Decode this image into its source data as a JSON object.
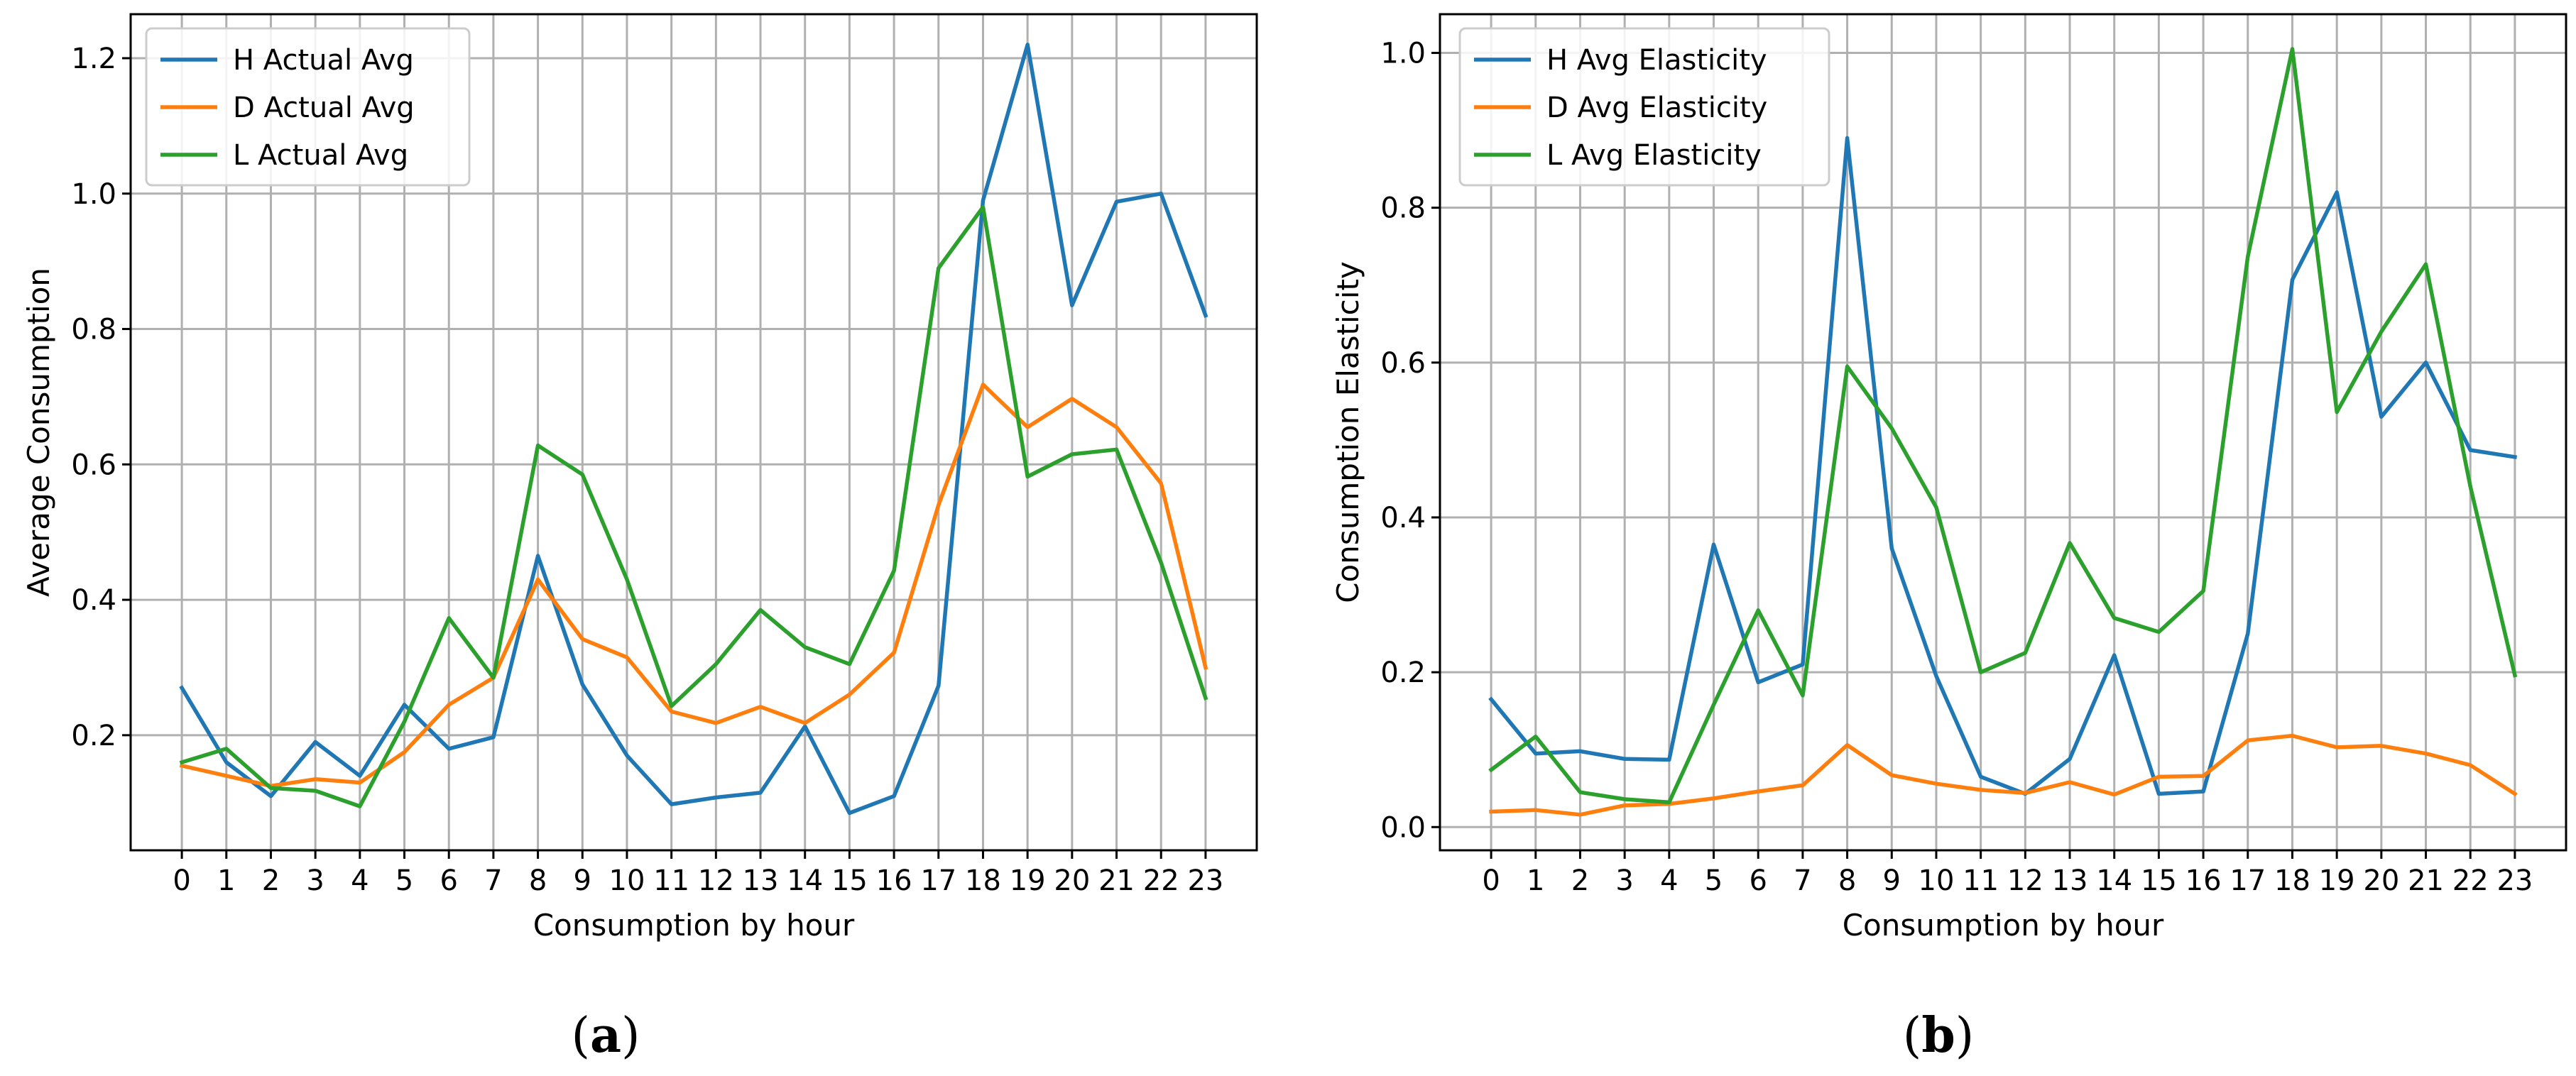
{
  "chart_data": [
    {
      "type": "line",
      "panel": "a",
      "caption": "(a)",
      "caption_open": "(",
      "caption_letter": "a",
      "caption_close": ")",
      "xlabel": "Consumption by hour",
      "ylabel": "Average Consumption",
      "x": [
        0,
        1,
        2,
        3,
        4,
        5,
        6,
        7,
        8,
        9,
        10,
        11,
        12,
        13,
        14,
        15,
        16,
        17,
        18,
        19,
        20,
        21,
        22,
        23
      ],
      "x_ticks": [
        "0",
        "1",
        "2",
        "3",
        "4",
        "5",
        "6",
        "7",
        "8",
        "9",
        "10",
        "11",
        "12",
        "13",
        "14",
        "15",
        "16",
        "17",
        "18",
        "19",
        "20",
        "21",
        "22",
        "23"
      ],
      "xlim": [
        -1.15,
        24.15
      ],
      "ylim": [
        0.03,
        1.265
      ],
      "y_ticks": [
        0.2,
        0.4,
        0.6,
        0.8,
        1.0,
        1.2
      ],
      "y_tick_labels": [
        "0.2",
        "0.4",
        "0.6",
        "0.8",
        "1.0",
        "1.2"
      ],
      "grid": true,
      "legend_position": "upper-left",
      "series": [
        {
          "name": "H Actual Avg",
          "color": "#1f77b4",
          "values": [
            0.27,
            0.16,
            0.11,
            0.19,
            0.14,
            0.245,
            0.18,
            0.197,
            0.465,
            0.275,
            0.17,
            0.098,
            0.108,
            0.115,
            0.213,
            0.085,
            0.11,
            0.273,
            0.99,
            1.22,
            0.835,
            0.988,
            1.0,
            0.82
          ]
        },
        {
          "name": "D Actual Avg",
          "color": "#ff7f0e",
          "values": [
            0.155,
            0.14,
            0.125,
            0.135,
            0.13,
            0.175,
            0.245,
            0.285,
            0.43,
            0.342,
            0.315,
            0.235,
            0.218,
            0.242,
            0.218,
            0.26,
            0.322,
            0.54,
            0.718,
            0.655,
            0.697,
            0.655,
            0.572,
            0.3
          ]
        },
        {
          "name": "L Actual Avg",
          "color": "#2ca02c",
          "values": [
            0.16,
            0.18,
            0.122,
            0.118,
            0.095,
            0.22,
            0.373,
            0.285,
            0.628,
            0.585,
            0.43,
            0.243,
            0.305,
            0.385,
            0.33,
            0.305,
            0.443,
            0.89,
            0.98,
            0.582,
            0.615,
            0.622,
            0.455,
            0.255
          ]
        }
      ]
    },
    {
      "type": "line",
      "panel": "b",
      "caption": "(b)",
      "caption_open": "(",
      "caption_letter": "b",
      "caption_close": ")",
      "xlabel": "Consumption by hour",
      "ylabel": "Consumption Elasticity",
      "x": [
        0,
        1,
        2,
        3,
        4,
        5,
        6,
        7,
        8,
        9,
        10,
        11,
        12,
        13,
        14,
        15,
        16,
        17,
        18,
        19,
        20,
        21,
        22,
        23
      ],
      "x_ticks": [
        "0",
        "1",
        "2",
        "3",
        "4",
        "5",
        "6",
        "7",
        "8",
        "9",
        "10",
        "11",
        "12",
        "13",
        "14",
        "15",
        "16",
        "17",
        "18",
        "19",
        "20",
        "21",
        "22",
        "23"
      ],
      "xlim": [
        -1.15,
        24.15
      ],
      "ylim": [
        -0.03,
        1.05
      ],
      "y_ticks": [
        0.0,
        0.2,
        0.4,
        0.6,
        0.8,
        1.0
      ],
      "y_tick_labels": [
        "0.0",
        "0.2",
        "0.4",
        "0.6",
        "0.8",
        "1.0"
      ],
      "grid": true,
      "legend_position": "upper-left",
      "series": [
        {
          "name": "H Avg Elasticity",
          "color": "#1f77b4",
          "values": [
            0.165,
            0.095,
            0.098,
            0.088,
            0.087,
            0.365,
            0.187,
            0.21,
            0.89,
            0.36,
            0.195,
            0.065,
            0.043,
            0.088,
            0.222,
            0.043,
            0.046,
            0.25,
            0.707,
            0.82,
            0.53,
            0.6,
            0.487,
            0.478
          ]
        },
        {
          "name": "D Avg Elasticity",
          "color": "#ff7f0e",
          "values": [
            0.02,
            0.022,
            0.016,
            0.028,
            0.03,
            0.037,
            0.046,
            0.054,
            0.106,
            0.067,
            0.056,
            0.048,
            0.044,
            0.058,
            0.042,
            0.065,
            0.066,
            0.112,
            0.118,
            0.103,
            0.105,
            0.095,
            0.08,
            0.043
          ]
        },
        {
          "name": "L Avg Elasticity",
          "color": "#2ca02c",
          "values": [
            0.074,
            0.117,
            0.045,
            0.036,
            0.032,
            0.158,
            0.28,
            0.17,
            0.595,
            0.515,
            0.413,
            0.2,
            0.225,
            0.367,
            0.27,
            0.252,
            0.305,
            0.737,
            1.005,
            0.536,
            0.64,
            0.727,
            0.44,
            0.196
          ]
        }
      ]
    }
  ]
}
